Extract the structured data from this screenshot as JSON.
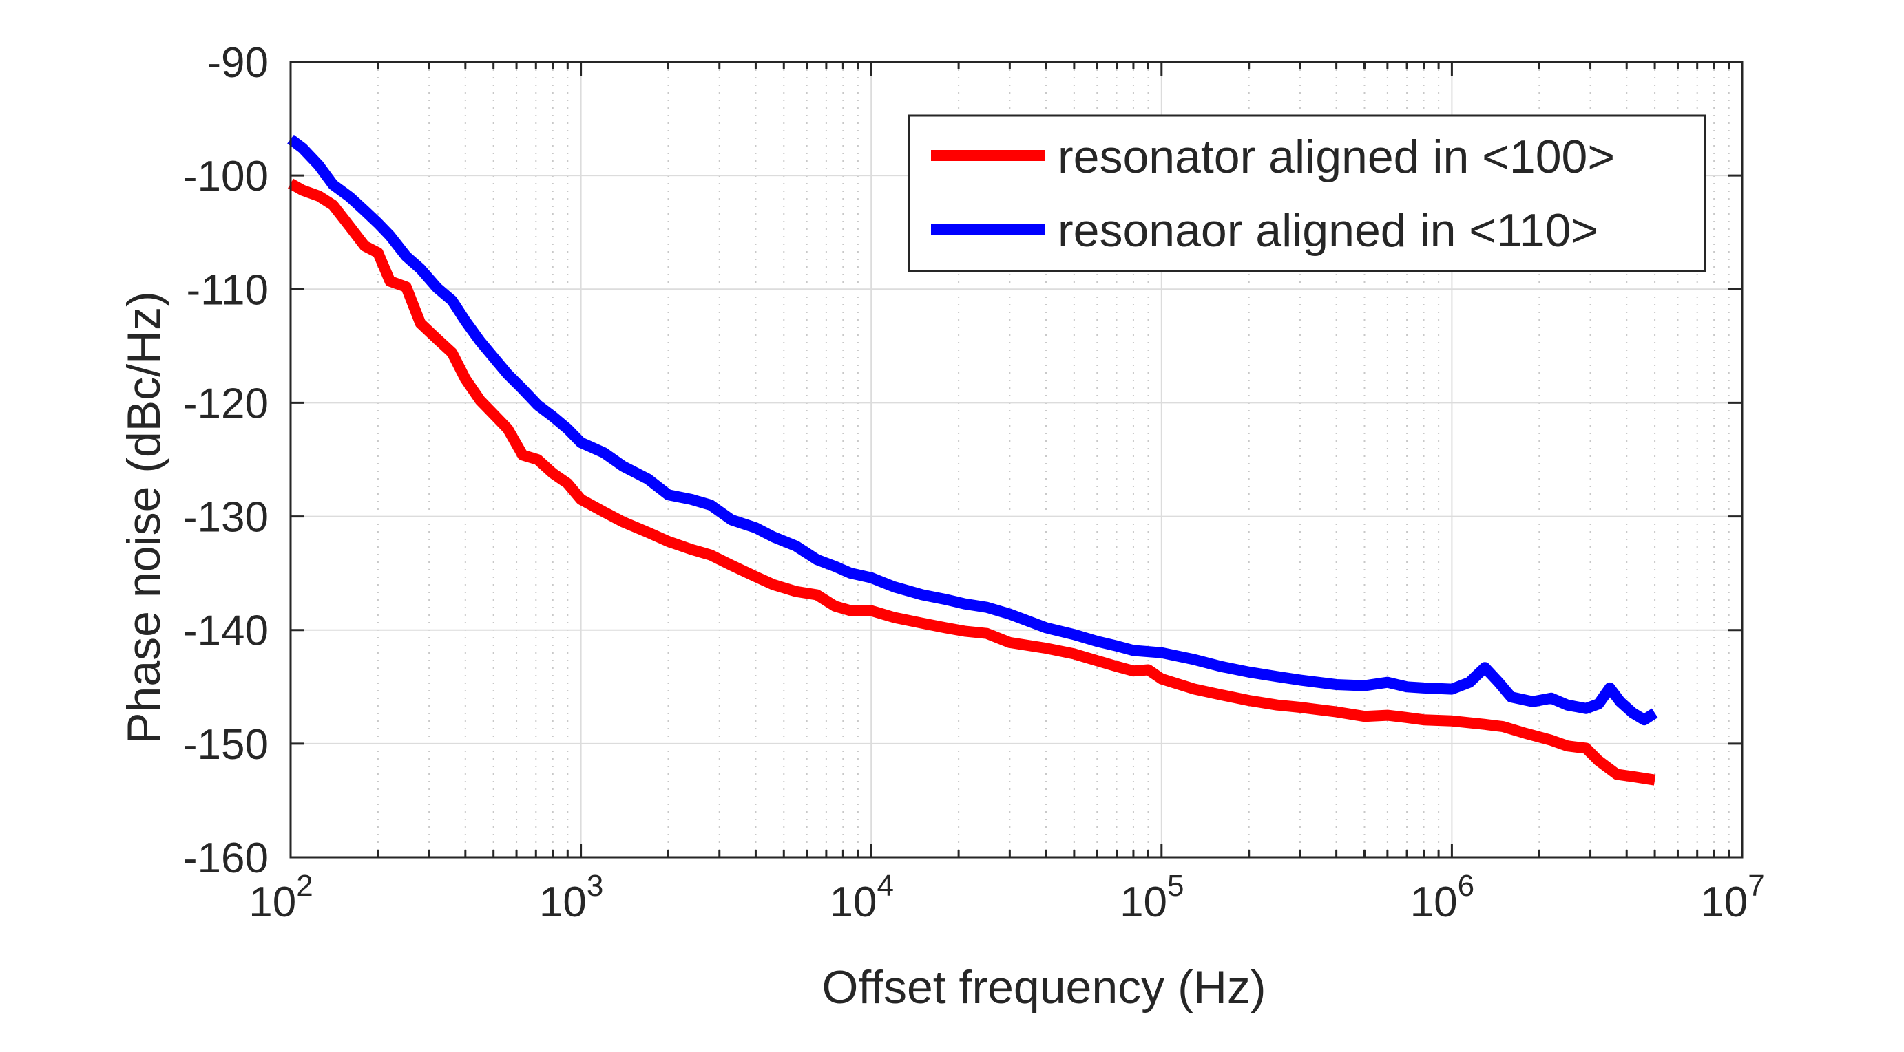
{
  "chart_data": {
    "type": "line",
    "title": "",
    "xlabel": "Offset frequency (Hz)",
    "ylabel": "Phase noise (dBc/Hz)",
    "xscale": "log",
    "xlim": [
      100,
      10000000
    ],
    "ylim": [
      -160,
      -90
    ],
    "grid": true,
    "legend_position": "top-right",
    "x_ticks": [
      {
        "value": 100,
        "base": "10",
        "exp": "2"
      },
      {
        "value": 1000,
        "base": "10",
        "exp": "3"
      },
      {
        "value": 10000,
        "base": "10",
        "exp": "4"
      },
      {
        "value": 100000,
        "base": "10",
        "exp": "5"
      },
      {
        "value": 1000000,
        "base": "10",
        "exp": "6"
      },
      {
        "value": 10000000,
        "base": "10",
        "exp": "7"
      }
    ],
    "y_ticks": [
      -90,
      -100,
      -110,
      -120,
      -130,
      -140,
      -150,
      -160
    ],
    "series": [
      {
        "name": "resonator aligned in <100>",
        "color": "#ff0000",
        "points": [
          [
            100,
            -100.7
          ],
          [
            110,
            -101.3
          ],
          [
            125,
            -101.8
          ],
          [
            140,
            -102.6
          ],
          [
            160,
            -104.5
          ],
          [
            180,
            -106.2
          ],
          [
            200,
            -106.8
          ],
          [
            220,
            -109.3
          ],
          [
            250,
            -109.8
          ],
          [
            280,
            -113.0
          ],
          [
            320,
            -114.4
          ],
          [
            360,
            -115.6
          ],
          [
            400,
            -117.9
          ],
          [
            450,
            -119.8
          ],
          [
            500,
            -121.0
          ],
          [
            560,
            -122.3
          ],
          [
            630,
            -124.6
          ],
          [
            710,
            -125.0
          ],
          [
            800,
            -126.2
          ],
          [
            900,
            -127.1
          ],
          [
            1000,
            -128.5
          ],
          [
            1200,
            -129.6
          ],
          [
            1400,
            -130.5
          ],
          [
            1700,
            -131.4
          ],
          [
            2000,
            -132.2
          ],
          [
            2400,
            -132.9
          ],
          [
            2800,
            -133.4
          ],
          [
            3300,
            -134.3
          ],
          [
            4000,
            -135.3
          ],
          [
            4600,
            -136.0
          ],
          [
            5500,
            -136.6
          ],
          [
            6500,
            -136.9
          ],
          [
            7500,
            -137.9
          ],
          [
            8500,
            -138.3
          ],
          [
            10000,
            -138.3
          ],
          [
            12000,
            -138.9
          ],
          [
            15000,
            -139.4
          ],
          [
            18000,
            -139.8
          ],
          [
            21000,
            -140.1
          ],
          [
            25000,
            -140.3
          ],
          [
            30000,
            -141.1
          ],
          [
            40000,
            -141.6
          ],
          [
            50000,
            -142.1
          ],
          [
            60000,
            -142.7
          ],
          [
            70000,
            -143.2
          ],
          [
            80000,
            -143.6
          ],
          [
            90000,
            -143.5
          ],
          [
            100000,
            -144.3
          ],
          [
            130000,
            -145.2
          ],
          [
            160000,
            -145.7
          ],
          [
            200000,
            -146.2
          ],
          [
            250000,
            -146.6
          ],
          [
            300000,
            -146.8
          ],
          [
            400000,
            -147.2
          ],
          [
            500000,
            -147.6
          ],
          [
            600000,
            -147.5
          ],
          [
            700000,
            -147.7
          ],
          [
            800000,
            -147.9
          ],
          [
            1000000,
            -148.0
          ],
          [
            1300000,
            -148.3
          ],
          [
            1500000,
            -148.5
          ],
          [
            1800000,
            -149.1
          ],
          [
            2200000,
            -149.7
          ],
          [
            2500000,
            -150.2
          ],
          [
            2900000,
            -150.4
          ],
          [
            3200000,
            -151.5
          ],
          [
            3700000,
            -152.7
          ],
          [
            4200000,
            -152.9
          ],
          [
            5000000,
            -153.2
          ]
        ]
      },
      {
        "name": "resonaor aligned in <110>",
        "color": "#0000ff",
        "points": [
          [
            100,
            -96.8
          ],
          [
            110,
            -97.6
          ],
          [
            125,
            -99.1
          ],
          [
            140,
            -100.8
          ],
          [
            160,
            -101.9
          ],
          [
            180,
            -103.1
          ],
          [
            200,
            -104.2
          ],
          [
            220,
            -105.3
          ],
          [
            250,
            -107.1
          ],
          [
            280,
            -108.2
          ],
          [
            320,
            -109.9
          ],
          [
            360,
            -111.0
          ],
          [
            400,
            -112.8
          ],
          [
            450,
            -114.6
          ],
          [
            500,
            -116.0
          ],
          [
            560,
            -117.5
          ],
          [
            630,
            -118.8
          ],
          [
            710,
            -120.2
          ],
          [
            800,
            -121.2
          ],
          [
            900,
            -122.3
          ],
          [
            1000,
            -123.5
          ],
          [
            1200,
            -124.4
          ],
          [
            1400,
            -125.6
          ],
          [
            1700,
            -126.7
          ],
          [
            2000,
            -128.1
          ],
          [
            2400,
            -128.5
          ],
          [
            2800,
            -129.0
          ],
          [
            3300,
            -130.3
          ],
          [
            4000,
            -131.0
          ],
          [
            4600,
            -131.8
          ],
          [
            5500,
            -132.6
          ],
          [
            6500,
            -133.8
          ],
          [
            7500,
            -134.4
          ],
          [
            8500,
            -135.0
          ],
          [
            10000,
            -135.4
          ],
          [
            12000,
            -136.2
          ],
          [
            15000,
            -136.9
          ],
          [
            18000,
            -137.3
          ],
          [
            21000,
            -137.7
          ],
          [
            25000,
            -138.0
          ],
          [
            30000,
            -138.6
          ],
          [
            40000,
            -139.8
          ],
          [
            50000,
            -140.4
          ],
          [
            60000,
            -141.0
          ],
          [
            70000,
            -141.4
          ],
          [
            80000,
            -141.8
          ],
          [
            90000,
            -141.9
          ],
          [
            100000,
            -142.0
          ],
          [
            130000,
            -142.6
          ],
          [
            160000,
            -143.2
          ],
          [
            200000,
            -143.7
          ],
          [
            250000,
            -144.1
          ],
          [
            300000,
            -144.4
          ],
          [
            400000,
            -144.8
          ],
          [
            500000,
            -144.9
          ],
          [
            600000,
            -144.6
          ],
          [
            700000,
            -145.0
          ],
          [
            800000,
            -145.1
          ],
          [
            1000000,
            -145.2
          ],
          [
            1150000,
            -144.6
          ],
          [
            1300000,
            -143.3
          ],
          [
            1450000,
            -144.6
          ],
          [
            1600000,
            -145.9
          ],
          [
            1900000,
            -146.3
          ],
          [
            2200000,
            -146.0
          ],
          [
            2500000,
            -146.6
          ],
          [
            2900000,
            -146.9
          ],
          [
            3200000,
            -146.5
          ],
          [
            3500000,
            -145.1
          ],
          [
            3800000,
            -146.3
          ],
          [
            4200000,
            -147.3
          ],
          [
            4600000,
            -147.9
          ],
          [
            5000000,
            -147.3
          ]
        ]
      }
    ]
  }
}
